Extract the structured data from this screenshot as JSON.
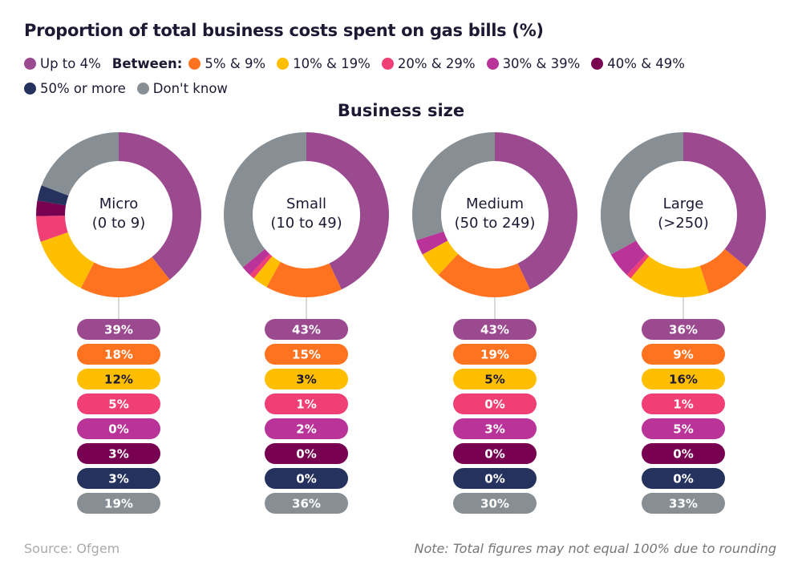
{
  "chart_data": {
    "type": "pie",
    "title": "Proportion of total business costs spent on gas bills (%)",
    "subtitle": "Business size",
    "legend_prefix": "Between:",
    "legend_placement": "top",
    "categories": [
      "Up to 4%",
      "5% & 9%",
      "10% & 19%",
      "20% & 29%",
      "30% & 39%",
      "40% & 49%",
      "50% or more",
      "Don't know"
    ],
    "colors": [
      "#9b4a8f",
      "#ff7320",
      "#ffbf00",
      "#f03f75",
      "#b93399",
      "#770050",
      "#26325e",
      "#878f94"
    ],
    "label_text_colors": [
      "#ffffff",
      "#ffffff",
      "#1c1a33",
      "#ffffff",
      "#ffffff",
      "#ffffff",
      "#ffffff",
      "#ffffff"
    ],
    "series": [
      {
        "name": "Micro",
        "sub": "(0 to 9)",
        "values": [
          39,
          18,
          12,
          5,
          0,
          3,
          3,
          19
        ]
      },
      {
        "name": "Small",
        "sub": "(10 to 49)",
        "values": [
          43,
          15,
          3,
          1,
          2,
          0,
          0,
          36
        ]
      },
      {
        "name": "Medium",
        "sub": "(50 to 249)",
        "values": [
          43,
          19,
          5,
          0,
          3,
          0,
          0,
          30
        ]
      },
      {
        "name": "Large",
        "sub": "(>250)",
        "values": [
          36,
          9,
          16,
          1,
          5,
          0,
          0,
          33
        ]
      }
    ]
  },
  "source": "Source: Ofgem",
  "note": "Note: Total figures may not equal 100% due to rounding"
}
